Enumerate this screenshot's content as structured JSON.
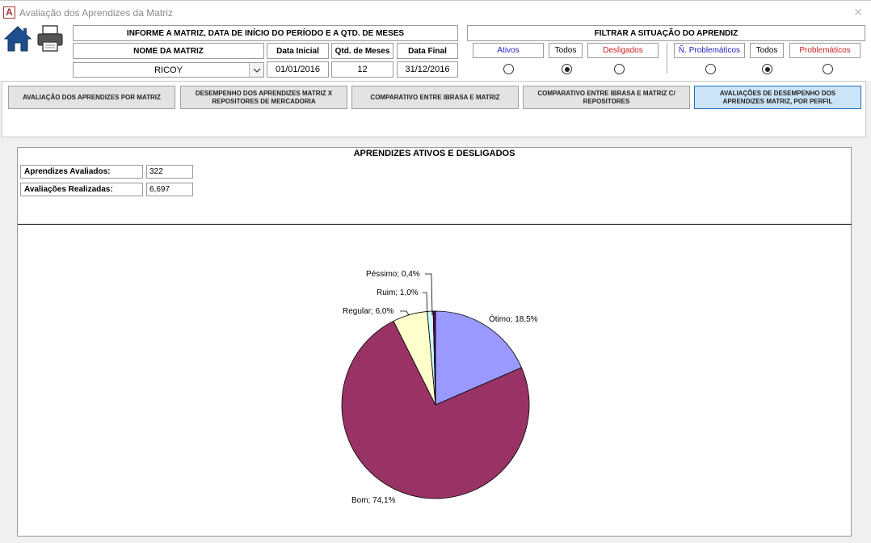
{
  "window": {
    "title": "Avaliação dos Aprendizes da Matriz",
    "app_icon_letter": "A"
  },
  "header": {
    "informe_label": "INFORME A MATRIZ, DATA DE INÍCIO DO PERÍODO E A QTD. DE MESES",
    "nome_matriz_label": "NOME DA MATRIZ",
    "nome_matriz_value": "RICOY",
    "data_inicial_label": "Data Inicial",
    "data_inicial_value": "01/01/2016",
    "qtd_meses_label": "Qtd. de Meses",
    "qtd_meses_value": "12",
    "data_final_label": "Data Final",
    "data_final_value": "31/12/2016"
  },
  "filter": {
    "title": "FILTRAR A SITUAÇÃO DO APRENDIZ",
    "situacao": [
      {
        "label": "Ativos",
        "selected": false
      },
      {
        "label": "Todos",
        "selected": true
      },
      {
        "label": "Desligados",
        "selected": false
      }
    ],
    "problematicos": [
      {
        "label": "Ñ. Problemáticos",
        "selected": false
      },
      {
        "label": "Todos",
        "selected": true
      },
      {
        "label": "Problemáticos",
        "selected": false
      }
    ]
  },
  "tabs": [
    {
      "label": "AVALIAÇÃO DOS APRENDIZES POR MATRIZ",
      "active": false
    },
    {
      "label": "DESEMPENHO DOS APRENDIZES MATRIZ X REPOSITORES DE MERCADORIA",
      "active": false
    },
    {
      "label": "COMPARATIVO ENTRE IBRASA E MATRIZ",
      "active": false
    },
    {
      "label": "COMPARATIVO ENTRE IBRASA E MATRIZ C/ REPOSITORES",
      "active": false
    },
    {
      "label": "AVALIAÇÕES DE DESEMPENHO DOS APRENDIZES MATRIZ, POR PERFIL",
      "active": true
    }
  ],
  "report": {
    "title": "APRENDIZES ATIVOS E DESLIGADOS",
    "aprendizes_avaliados_label": "Aprendizes Avaliados:",
    "aprendizes_avaliados_value": "322",
    "avaliacoes_realizadas_label": "Avaliações Realizadas:",
    "avaliacoes_realizadas_value": "6,697"
  },
  "chart_data": {
    "type": "pie",
    "title": "",
    "slices": [
      {
        "label": "Ótimo; 18,5%",
        "value": 18.5,
        "color": "#9999ff"
      },
      {
        "label": "Bom; 74,1%",
        "value": 74.1,
        "color": "#993366"
      },
      {
        "label": "Regular; 6,0%",
        "value": 6.0,
        "color": "#ffffcc"
      },
      {
        "label": "Ruim; 1,0%",
        "value": 1.0,
        "color": "#ccffff"
      },
      {
        "label": "Péssimo; 0,4%",
        "value": 0.4,
        "color": "#660066"
      }
    ]
  }
}
